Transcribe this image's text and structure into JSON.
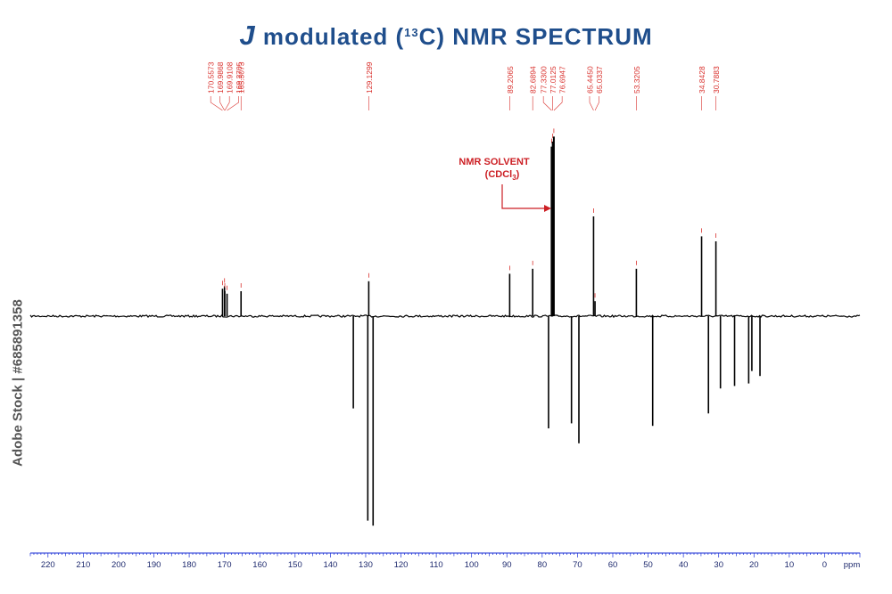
{
  "title": {
    "italic_letter": "J",
    "text_before_sup": " modulated (",
    "sup": "13",
    "text_after_sup": "C) NMR SPECTRUM"
  },
  "side_label": "Adobe Stock | #685891358",
  "annotation": {
    "line1": "NMR SOLVENT",
    "line2_prefix": "(CDCl",
    "line2_sub": "3",
    "line2_suffix": ")"
  },
  "colors": {
    "title": "#1f4e8c",
    "axis": "#1a2fd6",
    "peak_labels": "#d9302c",
    "annotation": "#cc1f24",
    "spectrum": "#000000"
  },
  "chart_data": {
    "type": "line",
    "title": "J modulated (13C) NMR SPECTRUM",
    "xlabel": "ppm",
    "xlim": [
      225,
      -10
    ],
    "x_reversed": true,
    "x_ticks": [
      220,
      210,
      200,
      190,
      180,
      170,
      160,
      150,
      140,
      130,
      120,
      110,
      100,
      90,
      80,
      70,
      60,
      50,
      40,
      30,
      20,
      10,
      0
    ],
    "labeled_peaks": [
      {
        "ppm": 170.5573,
        "label": "170.5573",
        "intensity": 0.11
      },
      {
        "ppm": 169.9868,
        "label": "169.9868",
        "intensity": 0.12
      },
      {
        "ppm": 169.9108,
        "label": "169.9108",
        "intensity": 0.1
      },
      {
        "ppm": 169.2705,
        "label": "169.2705",
        "intensity": 0.09
      },
      {
        "ppm": 165.3073,
        "label": "165.3073",
        "intensity": 0.1
      },
      {
        "ppm": 129.1299,
        "label": "129.1299",
        "intensity": 0.14
      },
      {
        "ppm": 89.2065,
        "label": "89.2065",
        "intensity": 0.17
      },
      {
        "ppm": 82.6894,
        "label": "82.6894",
        "intensity": 0.19
      },
      {
        "ppm": 77.33,
        "label": "77.3300",
        "intensity": 0.68
      },
      {
        "ppm": 77.0125,
        "label": "77.0125",
        "intensity": 0.7
      },
      {
        "ppm": 76.6947,
        "label": "76.6947",
        "intensity": 0.72
      },
      {
        "ppm": 65.445,
        "label": "65.4450",
        "intensity": 0.4
      },
      {
        "ppm": 65.0337,
        "label": "65.0337",
        "intensity": 0.06
      },
      {
        "ppm": 53.3205,
        "label": "53.3205",
        "intensity": 0.19
      },
      {
        "ppm": 34.8428,
        "label": "34.8428",
        "intensity": 0.32
      },
      {
        "ppm": 30.7883,
        "label": "30.7883",
        "intensity": 0.3
      }
    ],
    "negative_peaks": [
      {
        "ppm": 133.5,
        "intensity": -0.37
      },
      {
        "ppm": 129.4,
        "intensity": -0.82
      },
      {
        "ppm": 127.9,
        "intensity": -0.84
      },
      {
        "ppm": 78.2,
        "intensity": -0.45
      },
      {
        "ppm": 71.7,
        "intensity": -0.43
      },
      {
        "ppm": 69.6,
        "intensity": -0.51
      },
      {
        "ppm": 48.7,
        "intensity": -0.44
      },
      {
        "ppm": 32.9,
        "intensity": -0.39
      },
      {
        "ppm": 29.5,
        "intensity": -0.29
      },
      {
        "ppm": 25.5,
        "intensity": -0.28
      },
      {
        "ppm": 21.5,
        "intensity": -0.27
      },
      {
        "ppm": 20.6,
        "intensity": -0.22
      },
      {
        "ppm": 18.3,
        "intensity": -0.24
      }
    ],
    "grid": false
  }
}
